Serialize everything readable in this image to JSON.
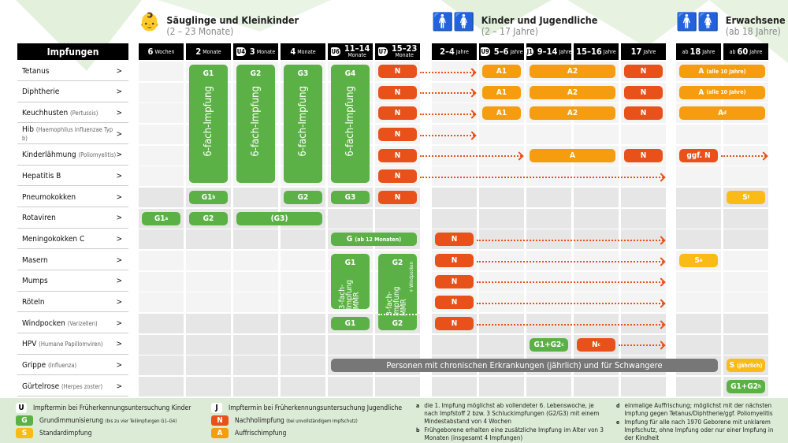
{
  "colors": {
    "G": "#5cb146",
    "N": "#e8521a",
    "A": "#f59c0f",
    "S": "#fbbb17",
    "gray": "#777777",
    "header": "#000000",
    "legend_bg": "#dcebd6"
  },
  "groups": [
    {
      "icon": "baby-icon",
      "title": "Säuglinge und Kleinkinder",
      "range": "(2 – 23 Monate)"
    },
    {
      "icon": "children-icon",
      "title": "Kinder und Jugendliche",
      "range": "(2 – 17 Jahre)"
    },
    {
      "icon": "adults-icon",
      "title": "Erwachsene",
      "range": "(ab 18 Jahre)"
    }
  ],
  "header_label": "Impfungen",
  "columns": [
    {
      "id": "w6",
      "pre": "",
      "num": "6",
      "unit": "Wochen",
      "badge": ""
    },
    {
      "id": "m2",
      "pre": "",
      "num": "2",
      "unit": "Monate",
      "badge": ""
    },
    {
      "id": "m3",
      "pre": "",
      "num": "3",
      "unit": "Monate",
      "badge": "U4"
    },
    {
      "id": "m4",
      "pre": "",
      "num": "4",
      "unit": "Monate",
      "badge": ""
    },
    {
      "id": "m11",
      "pre": "",
      "num": "11–14",
      "unit": "Monate",
      "badge": "U6",
      "stack": true
    },
    {
      "id": "m15",
      "pre": "",
      "num": "15–23",
      "unit": "Monate",
      "badge": "U7",
      "stack": true
    },
    {
      "id": "y2",
      "pre": "",
      "num": "2–4",
      "unit": "Jahre",
      "badge": ""
    },
    {
      "id": "y5",
      "pre": "",
      "num": "5–6",
      "unit": "Jahre",
      "badge": "U9"
    },
    {
      "id": "y9",
      "pre": "",
      "num": "9–14",
      "unit": "Jahre",
      "badge": "J1"
    },
    {
      "id": "y15",
      "pre": "",
      "num": "15–16",
      "unit": "Jahre",
      "badge": ""
    },
    {
      "id": "y17",
      "pre": "",
      "num": "17",
      "unit": "Jahre",
      "badge": ""
    },
    {
      "id": "a18",
      "pre": "ab",
      "num": "18",
      "unit": "Jahre",
      "badge": ""
    },
    {
      "id": "a60",
      "pre": "ab",
      "num": "60",
      "unit": "Jahre",
      "badge": ""
    }
  ],
  "rows": [
    {
      "name": "Tetanus",
      "sub": ""
    },
    {
      "name": "Diphtherie",
      "sub": ""
    },
    {
      "name": "Keuchhusten",
      "sub": "(Pertussis)"
    },
    {
      "name": "Hib",
      "sub": "(Haemophilus influenzae Typ b)"
    },
    {
      "name": "Kinderlähmung",
      "sub": "(Poliomyelitis)"
    },
    {
      "name": "Hepatitis B",
      "sub": ""
    },
    {
      "name": "Pneumokokken",
      "sub": ""
    },
    {
      "name": "Rotaviren",
      "sub": ""
    },
    {
      "name": "Meningokokken C",
      "sub": ""
    },
    {
      "name": "Masern",
      "sub": ""
    },
    {
      "name": "Mumps",
      "sub": ""
    },
    {
      "name": "Röteln",
      "sub": ""
    },
    {
      "name": "Windpocken",
      "sub": "(Varizellen)"
    },
    {
      "name": "HPV",
      "sub": "(Humane Papillomviren)"
    },
    {
      "name": "Grippe",
      "sub": "(Influenza)"
    },
    {
      "name": "Gürtelrose",
      "sub": "(Herpes zoster)"
    }
  ],
  "row_chevron": ">",
  "tall_pills": [
    {
      "rows": [
        0,
        5
      ],
      "col": "m2",
      "type": "G",
      "label": "G1",
      "text": "6-fach-Impfung"
    },
    {
      "rows": [
        0,
        5
      ],
      "col": "m3",
      "type": "G",
      "label": "G2",
      "text": "6-fach-Impfung"
    },
    {
      "rows": [
        0,
        5
      ],
      "col": "m4",
      "type": "G",
      "label": "G3",
      "text": "6-fach-Impfung"
    },
    {
      "rows": [
        0,
        5
      ],
      "col": "m11",
      "type": "G",
      "label": "G4",
      "text": "6-fach-Impfung"
    },
    {
      "rows": [
        9,
        11
      ],
      "col": "m11",
      "type": "G",
      "label": "G1",
      "text": "3-fach-Impfung MMR"
    },
    {
      "rows": [
        9,
        12
      ],
      "col": "m15",
      "type": "G",
      "label": "G2",
      "text": "3-fach-Impfung MMR",
      "extra": "+ Windpocken",
      "bottom": "G2"
    }
  ],
  "pills": [
    {
      "row": 0,
      "from": "m15",
      "to": "m15",
      "type": "N",
      "label": "N"
    },
    {
      "row": 1,
      "from": "m15",
      "to": "m15",
      "type": "N",
      "label": "N"
    },
    {
      "row": 2,
      "from": "m15",
      "to": "m15",
      "type": "N",
      "label": "N"
    },
    {
      "row": 3,
      "from": "m15",
      "to": "m15",
      "type": "N",
      "label": "N"
    },
    {
      "row": 4,
      "from": "m15",
      "to": "m15",
      "type": "N",
      "label": "N"
    },
    {
      "row": 5,
      "from": "m15",
      "to": "m15",
      "type": "N",
      "label": "N"
    },
    {
      "row": 0,
      "from": "y5",
      "to": "y5",
      "type": "A",
      "label": "A1"
    },
    {
      "row": 0,
      "from": "y9",
      "to": "y15",
      "type": "A",
      "label": "A2"
    },
    {
      "row": 0,
      "from": "y17",
      "to": "y17",
      "type": "N",
      "label": "N"
    },
    {
      "row": 0,
      "from": "a18",
      "to": "a60",
      "type": "A",
      "label": "A",
      "note": "(alle 10 Jahre)"
    },
    {
      "row": 1,
      "from": "y5",
      "to": "y5",
      "type": "A",
      "label": "A1"
    },
    {
      "row": 1,
      "from": "y9",
      "to": "y15",
      "type": "A",
      "label": "A2"
    },
    {
      "row": 1,
      "from": "y17",
      "to": "y17",
      "type": "N",
      "label": "N"
    },
    {
      "row": 1,
      "from": "a18",
      "to": "a60",
      "type": "A",
      "label": "A",
      "note": "(alle 10 Jahre)"
    },
    {
      "row": 2,
      "from": "y5",
      "to": "y5",
      "type": "A",
      "label": "A1"
    },
    {
      "row": 2,
      "from": "y9",
      "to": "y15",
      "type": "A",
      "label": "A2"
    },
    {
      "row": 2,
      "from": "y17",
      "to": "y17",
      "type": "N",
      "label": "N"
    },
    {
      "row": 2,
      "from": "a18",
      "to": "a60",
      "type": "A",
      "label": "A",
      "sup": "d"
    },
    {
      "row": 4,
      "from": "y9",
      "to": "y15",
      "type": "A",
      "label": "A"
    },
    {
      "row": 4,
      "from": "y17",
      "to": "y17",
      "type": "N",
      "label": "N"
    },
    {
      "row": 4,
      "from": "a18",
      "to": "a18",
      "type": "N",
      "label": "ggf. N"
    },
    {
      "row": 6,
      "from": "m2",
      "to": "m2",
      "type": "G",
      "label": "G1",
      "sup": "b"
    },
    {
      "row": 6,
      "from": "m4",
      "to": "m4",
      "type": "G",
      "label": "G2"
    },
    {
      "row": 6,
      "from": "m11",
      "to": "m11",
      "type": "G",
      "label": "G3"
    },
    {
      "row": 6,
      "from": "m15",
      "to": "m15",
      "type": "N",
      "label": "N"
    },
    {
      "row": 6,
      "from": "a60",
      "to": "a60",
      "type": "S",
      "label": "S",
      "sup": "f"
    },
    {
      "row": 7,
      "from": "w6",
      "to": "w6",
      "type": "G",
      "label": "G1",
      "sup": "a"
    },
    {
      "row": 7,
      "from": "m2",
      "to": "m2",
      "type": "G",
      "label": "G2"
    },
    {
      "row": 7,
      "from": "m3",
      "to": "m4",
      "type": "G",
      "label": "(G3)"
    },
    {
      "row": 8,
      "from": "m11",
      "to": "m15",
      "type": "G",
      "label": "G",
      "note": "(ab 12 Monaten)"
    },
    {
      "row": 8,
      "from": "y2",
      "to": "y2",
      "type": "N",
      "label": "N"
    },
    {
      "row": 9,
      "from": "y2",
      "to": "y2",
      "type": "N",
      "label": "N"
    },
    {
      "row": 9,
      "from": "a18",
      "to": "a18",
      "type": "S",
      "label": "S",
      "sup": "e"
    },
    {
      "row": 10,
      "from": "y2",
      "to": "y2",
      "type": "N",
      "label": "N"
    },
    {
      "row": 11,
      "from": "y2",
      "to": "y2",
      "type": "N",
      "label": "N"
    },
    {
      "row": 12,
      "from": "m11",
      "to": "m11",
      "type": "G",
      "label": "G1"
    },
    {
      "row": 12,
      "from": "y2",
      "to": "y2",
      "type": "N",
      "label": "N"
    },
    {
      "row": 13,
      "from": "y9",
      "to": "y9",
      "type": "G",
      "label": "G1+G2",
      "sup": "c"
    },
    {
      "row": 13,
      "from": "y15",
      "to": "y15",
      "type": "N",
      "label": "N",
      "sup": "c"
    },
    {
      "row": 14,
      "from": "m11",
      "to": "a18",
      "type": "gray",
      "label": "Personen mit chronischen Erkrankungen (jährlich) und für Schwangere"
    },
    {
      "row": 14,
      "from": "a60",
      "to": "a60",
      "type": "S",
      "label": "S",
      "note": "(jährlich)"
    },
    {
      "row": 15,
      "from": "a60",
      "to": "a60",
      "type": "G",
      "label": "G1+G2",
      "sup": "h"
    }
  ],
  "arrows": [
    {
      "row": 0,
      "from": "m15",
      "to": "y2"
    },
    {
      "row": 1,
      "from": "m15",
      "to": "y2"
    },
    {
      "row": 2,
      "from": "m15",
      "to": "y2"
    },
    {
      "row": 3,
      "from": "m15",
      "to": "y2"
    },
    {
      "row": 4,
      "from": "m15",
      "to": "y5"
    },
    {
      "row": 5,
      "from": "m15",
      "to": "y17"
    },
    {
      "row": 4,
      "from": "a18",
      "to": "a60"
    },
    {
      "row": 8,
      "from": "y2",
      "to": "y17"
    },
    {
      "row": 9,
      "from": "y2",
      "to": "y17"
    },
    {
      "row": 10,
      "from": "y2",
      "to": "y17"
    },
    {
      "row": 11,
      "from": "y2",
      "to": "y17"
    },
    {
      "row": 12,
      "from": "y2",
      "to": "y17"
    },
    {
      "row": 13,
      "from": "y15",
      "to": "y17"
    }
  ],
  "legend": [
    {
      "key": "U",
      "type": "U",
      "text": "Impftermin bei Früherkennungsuntersuchung Kinder",
      "note": ""
    },
    {
      "key": "J",
      "type": "U",
      "text": "Impftermin bei Früherkennungsuntersuchung Jugendliche",
      "note": ""
    },
    {
      "key": "G",
      "type": "G",
      "text": "Grundimmunisierung",
      "note": "(bis zu vier Teilimpfungen G1–G4)"
    },
    {
      "key": "N",
      "type": "N",
      "text": "Nachholimpfung",
      "note": "(bei unvollständigem Impfschutz)"
    },
    {
      "key": "S",
      "type": "S",
      "text": "Standardimpfung",
      "note": ""
    },
    {
      "key": "A",
      "type": "A",
      "text": "Auffrischimpfung",
      "note": ""
    }
  ],
  "footnotes": [
    {
      "key": "a",
      "text": "die 1. Impfung möglichst ab vollendeter 6. Lebenswoche, je nach Impfstoff 2 bzw. 3 Schluckimpfungen (G2/G3) mit einem Mindestabstand von 4 Wochen"
    },
    {
      "key": "b",
      "text": "Frühgeborene erhalten eine zusätzliche Impfung im Alter von 3 Monaten (insgesamt 4 Impfungen)"
    },
    {
      "key": "d",
      "text": "einmalige Auffrischung; möglichst mit der nächsten Impfung gegen Tetanus/Diphtherie/ggf. Poliomyelitis"
    },
    {
      "key": "e",
      "text": "Impfung für alle nach 1970 Geborene mit unklarem Impfschutz, ohne Impfung oder nur einer Impfung in der Kindheit"
    }
  ]
}
